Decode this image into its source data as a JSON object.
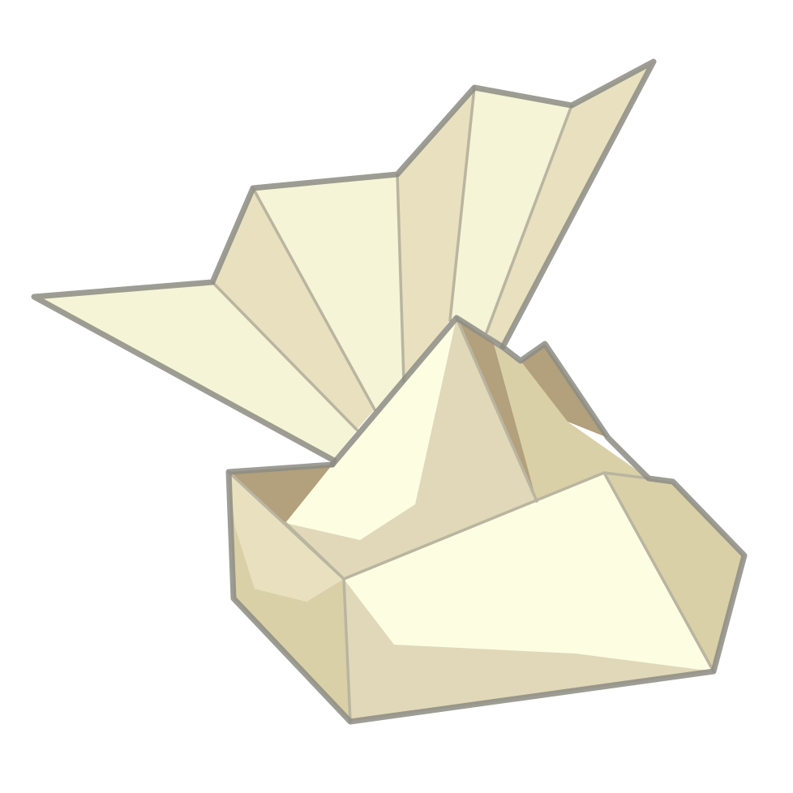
{
  "illustration": {
    "subject": "folded-paper-origami",
    "colors": {
      "paper_light": "#FDFDE2",
      "paper_pale": "#F5F4D6",
      "paper_mid": "#E8E0BF",
      "paper_tan": "#E0D8B8",
      "paper_shade": "#D9D0A8",
      "paper_dark": "#B3A07C",
      "outline": "#8C8C84",
      "crease": "#B9B5A0",
      "background": "#FFFFFF"
    }
  }
}
